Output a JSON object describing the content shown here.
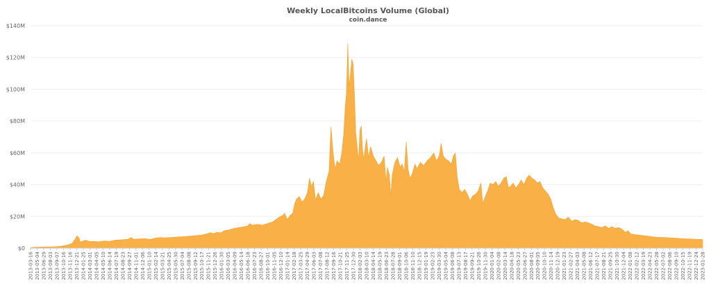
{
  "chart_data": {
    "type": "area",
    "title": "Weekly LocalBitcoins Volume (Global)",
    "subtitle": "coin.dance",
    "ylim": [
      0,
      140
    ],
    "y_ticks": [
      {
        "value": 0,
        "label": "$0"
      },
      {
        "value": 20,
        "label": "$20M"
      },
      {
        "value": 40,
        "label": "$40M"
      },
      {
        "value": 60,
        "label": "$60M"
      },
      {
        "value": 80,
        "label": "$80M"
      },
      {
        "value": 100,
        "label": "$100M"
      },
      {
        "value": 120,
        "label": "$120M"
      },
      {
        "value": 140,
        "label": "$140M"
      }
    ],
    "x_tick_labels": [
      "2013-03-16",
      "2013-05-04",
      "2013-06-29",
      "2013-08-03",
      "2013-09-07",
      "2013-10-16",
      "2013-11-16",
      "2013-12-21",
      "2014-01-25",
      "2014-03-01",
      "2014-04-05",
      "2014-05-10",
      "2014-06-14",
      "2014-07-19",
      "2014-08-23",
      "2014-09-27",
      "2014-11-01",
      "2014-12-06",
      "2015-01-10",
      "2015-02-14",
      "2015-03-21",
      "2015-04-25",
      "2015-05-30",
      "2015-07-04",
      "2015-08-08",
      "2015-09-12",
      "2015-10-17",
      "2015-11-21",
      "2015-12-26",
      "2016-01-30",
      "2016-03-05",
      "2016-04-09",
      "2016-05-14",
      "2016-06-18",
      "2016-07-23",
      "2016-08-27",
      "2016-10-01",
      "2016-11-05",
      "2016-12-10",
      "2017-01-14",
      "2017-02-18",
      "2017-03-25",
      "2017-04-29",
      "2017-06-03",
      "2017-07-08",
      "2017-08-12",
      "2017-09-16",
      "2017-10-21",
      "2017-11-25",
      "2017-12-30",
      "2018-02-03",
      "2018-03-10",
      "2018-04-14",
      "2018-05-19",
      "2018-06-23",
      "2018-07-28",
      "2018-09-01",
      "2018-10-06",
      "2018-11-10",
      "2018-12-15",
      "2019-01-19",
      "2019-02-23",
      "2019-03-30",
      "2019-05-04",
      "2019-06-08",
      "2019-07-13",
      "2019-08-17",
      "2019-09-21",
      "2019-10-26",
      "2019-11-30",
      "2020-01-04",
      "2020-02-08",
      "2020-03-14",
      "2020-04-18",
      "2020-05-23",
      "2020-06-27",
      "2020-08-01",
      "2020-09-05",
      "2020-10-10",
      "2020-11-14",
      "2020-12-19",
      "2021-01-23",
      "2021-02-27",
      "2021-04-03",
      "2021-05-08",
      "2021-06-12",
      "2021-07-17",
      "2021-08-21",
      "2021-09-25",
      "2021-10-30",
      "2021-12-04",
      "2022-01-08",
      "2022-02-12",
      "2022-03-19",
      "2022-04-23",
      "2022-05-28",
      "2022-07-02",
      "2022-08-06",
      "2022-09-10",
      "2022-10-15",
      "2022-11-19",
      "2022-12-24",
      "2023-01-28"
    ],
    "x_range": [
      0,
      1000
    ],
    "points": [
      [
        0,
        0.3
      ],
      [
        8,
        0.6
      ],
      [
        20,
        0.8
      ],
      [
        35,
        0.9
      ],
      [
        45,
        1.2
      ],
      [
        55,
        2.0
      ],
      [
        62,
        3.0
      ],
      [
        66,
        5.5
      ],
      [
        69,
        7.7
      ],
      [
        72,
        6.5
      ],
      [
        74,
        3.8
      ],
      [
        78,
        4.5
      ],
      [
        82,
        5.0
      ],
      [
        88,
        4.2
      ],
      [
        95,
        4.3
      ],
      [
        102,
        4.0
      ],
      [
        110,
        4.6
      ],
      [
        118,
        4.3
      ],
      [
        125,
        5.0
      ],
      [
        135,
        5.3
      ],
      [
        145,
        5.7
      ],
      [
        150,
        6.8
      ],
      [
        153,
        5.6
      ],
      [
        160,
        5.8
      ],
      [
        170,
        6.0
      ],
      [
        178,
        5.5
      ],
      [
        185,
        6.3
      ],
      [
        192,
        6.7
      ],
      [
        200,
        6.5
      ],
      [
        210,
        6.8
      ],
      [
        220,
        7.1
      ],
      [
        230,
        7.3
      ],
      [
        240,
        7.7
      ],
      [
        248,
        8.0
      ],
      [
        255,
        8.3
      ],
      [
        262,
        9.0
      ],
      [
        268,
        9.8
      ],
      [
        272,
        9.2
      ],
      [
        278,
        10.0
      ],
      [
        283,
        9.6
      ],
      [
        288,
        11.0
      ],
      [
        295,
        11.5
      ],
      [
        303,
        12.5
      ],
      [
        310,
        13.0
      ],
      [
        318,
        13.5
      ],
      [
        323,
        14.0
      ],
      [
        326,
        15.5
      ],
      [
        330,
        14.5
      ],
      [
        338,
        15.0
      ],
      [
        345,
        14.5
      ],
      [
        352,
        15.5
      ],
      [
        360,
        16.5
      ],
      [
        365,
        18.0
      ],
      [
        370,
        19.5
      ],
      [
        375,
        20.5
      ],
      [
        378,
        22.0
      ],
      [
        382,
        18.0
      ],
      [
        386,
        20.5
      ],
      [
        390,
        22.0
      ],
      [
        393,
        28.0
      ],
      [
        396,
        31.0
      ],
      [
        400,
        32.5
      ],
      [
        404,
        29.0
      ],
      [
        408,
        31.0
      ],
      [
        412,
        35.0
      ],
      [
        415,
        44.0
      ],
      [
        418,
        39.0
      ],
      [
        421,
        42.0
      ],
      [
        424,
        30.5
      ],
      [
        428,
        35.0
      ],
      [
        432,
        31.0
      ],
      [
        436,
        33.0
      ],
      [
        440,
        42.0
      ],
      [
        444,
        48.0
      ],
      [
        447,
        76.5
      ],
      [
        450,
        61.0
      ],
      [
        453,
        50.0
      ],
      [
        456,
        55.0
      ],
      [
        460,
        53.0
      ],
      [
        463,
        60.0
      ],
      [
        466,
        72.0
      ],
      [
        468,
        88.0
      ],
      [
        470,
        98.0
      ],
      [
        472,
        129.0
      ],
      [
        474,
        102.0
      ],
      [
        476,
        110.0
      ],
      [
        478,
        119.0
      ],
      [
        480,
        116.0
      ],
      [
        482,
        96.0
      ],
      [
        484,
        72.0
      ],
      [
        486,
        64.0
      ],
      [
        488,
        55.0
      ],
      [
        490,
        74.0
      ],
      [
        492,
        77.0
      ],
      [
        494,
        62.0
      ],
      [
        496,
        56.0
      ],
      [
        498,
        64.0
      ],
      [
        500,
        69.0
      ],
      [
        503,
        57.0
      ],
      [
        506,
        64.0
      ],
      [
        510,
        58.0
      ],
      [
        514,
        55.0
      ],
      [
        518,
        52.0
      ],
      [
        522,
        54.0
      ],
      [
        526,
        58.0
      ],
      [
        529,
        42.0
      ],
      [
        531,
        51.0
      ],
      [
        534,
        46.0
      ],
      [
        536,
        33.0
      ],
      [
        538,
        46.0
      ],
      [
        542,
        54.0
      ],
      [
        546,
        57.0
      ],
      [
        550,
        51.0
      ],
      [
        553,
        53.0
      ],
      [
        556,
        48.0
      ],
      [
        559,
        67.0
      ],
      [
        562,
        49.0
      ],
      [
        565,
        44.0
      ],
      [
        568,
        47.0
      ],
      [
        572,
        53.0
      ],
      [
        575,
        50.0
      ],
      [
        580,
        54.0
      ],
      [
        585,
        52.0
      ],
      [
        590,
        55.0
      ],
      [
        595,
        57.0
      ],
      [
        600,
        60.0
      ],
      [
        604,
        55.0
      ],
      [
        608,
        58.0
      ],
      [
        611,
        66.0
      ],
      [
        614,
        58.0
      ],
      [
        618,
        56.0
      ],
      [
        622,
        55.0
      ],
      [
        626,
        53.0
      ],
      [
        629,
        58.0
      ],
      [
        632,
        60.0
      ],
      [
        635,
        44.0
      ],
      [
        638,
        37.0
      ],
      [
        642,
        35.0
      ],
      [
        646,
        37.0
      ],
      [
        650,
        34.0
      ],
      [
        654,
        30.0
      ],
      [
        658,
        33.0
      ],
      [
        662,
        34.0
      ],
      [
        666,
        36.0
      ],
      [
        670,
        41.0
      ],
      [
        673,
        28.0
      ],
      [
        676,
        32.0
      ],
      [
        680,
        36.0
      ],
      [
        684,
        41.0
      ],
      [
        688,
        40.0
      ],
      [
        692,
        42.0
      ],
      [
        696,
        39.0
      ],
      [
        700,
        41.0
      ],
      [
        704,
        44.0
      ],
      [
        708,
        45.0
      ],
      [
        711,
        38.0
      ],
      [
        714,
        39.0
      ],
      [
        718,
        41.0
      ],
      [
        722,
        38.0
      ],
      [
        726,
        40.0
      ],
      [
        730,
        43.0
      ],
      [
        734,
        40.0
      ],
      [
        738,
        44.0
      ],
      [
        742,
        46.0
      ],
      [
        746,
        44.0
      ],
      [
        750,
        43.0
      ],
      [
        754,
        41.0
      ],
      [
        758,
        42.0
      ],
      [
        762,
        38.0
      ],
      [
        766,
        36.0
      ],
      [
        770,
        34.0
      ],
      [
        774,
        31.0
      ],
      [
        778,
        25.0
      ],
      [
        782,
        21.0
      ],
      [
        786,
        19.0
      ],
      [
        790,
        18.5
      ],
      [
        795,
        18.0
      ],
      [
        800,
        19.5
      ],
      [
        805,
        17.0
      ],
      [
        810,
        18.0
      ],
      [
        815,
        17.5
      ],
      [
        820,
        16.0
      ],
      [
        825,
        16.5
      ],
      [
        830,
        16.0
      ],
      [
        835,
        15.0
      ],
      [
        840,
        14.0
      ],
      [
        845,
        13.5
      ],
      [
        850,
        13.0
      ],
      [
        855,
        14.0
      ],
      [
        860,
        12.5
      ],
      [
        865,
        13.5
      ],
      [
        870,
        12.5
      ],
      [
        875,
        13.0
      ],
      [
        880,
        12.0
      ],
      [
        885,
        10.0
      ],
      [
        889,
        11.0
      ],
      [
        893,
        9.0
      ],
      [
        900,
        8.5
      ],
      [
        910,
        8.0
      ],
      [
        920,
        7.5
      ],
      [
        930,
        7.0
      ],
      [
        940,
        6.8
      ],
      [
        950,
        6.5
      ],
      [
        960,
        6.3
      ],
      [
        970,
        6.0
      ],
      [
        980,
        5.8
      ],
      [
        990,
        5.6
      ],
      [
        1000,
        5.5
      ]
    ]
  }
}
